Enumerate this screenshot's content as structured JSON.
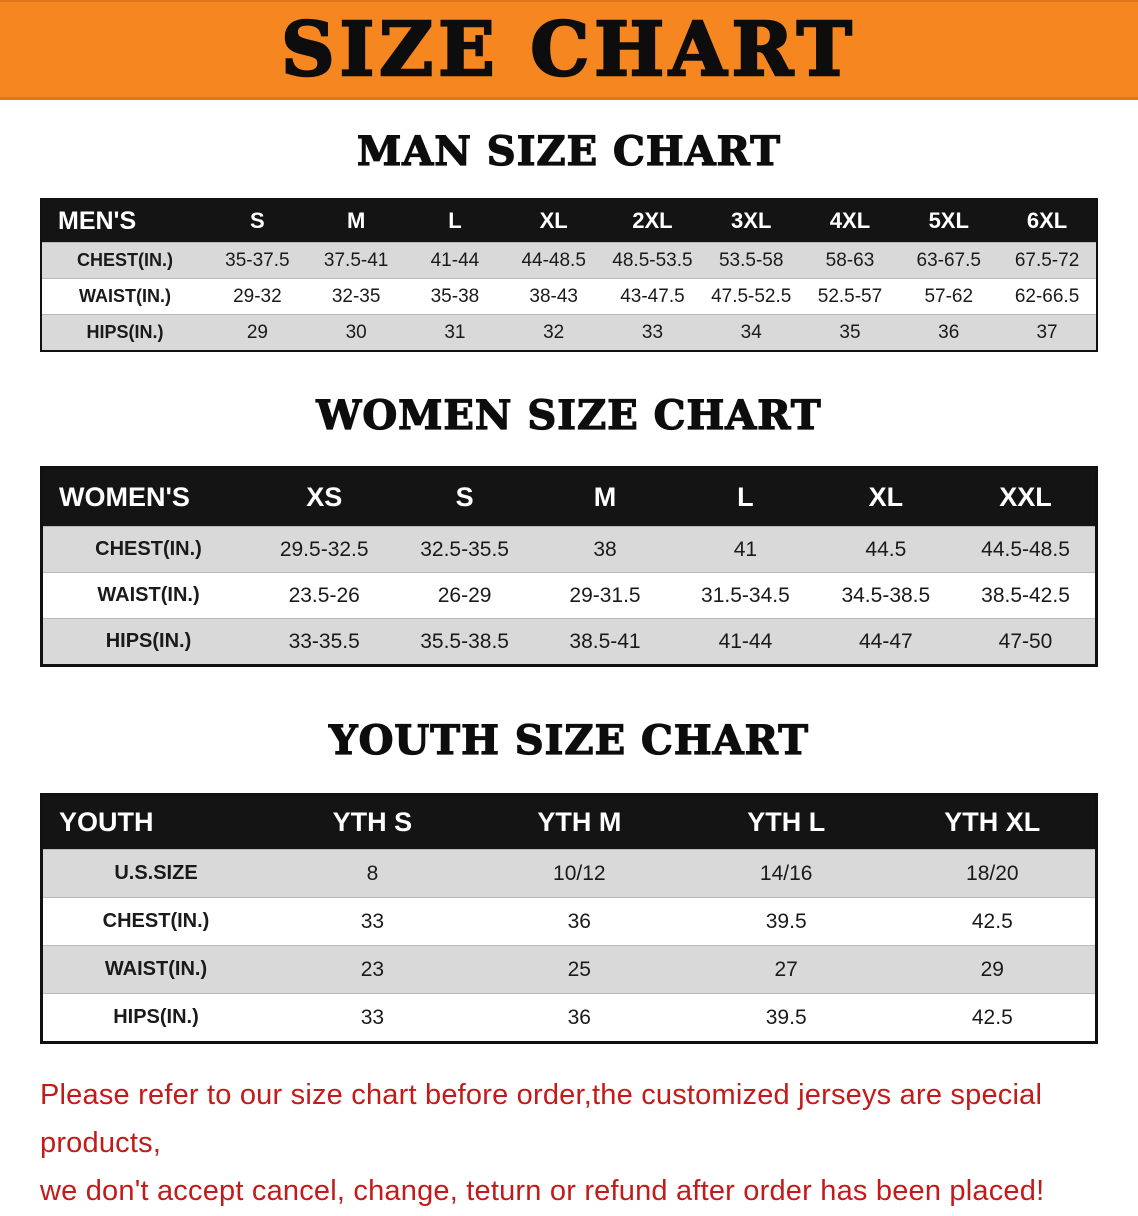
{
  "banner": {
    "title": "SIZE CHART"
  },
  "colors": {
    "banner_bg": "#f6861f",
    "table_header_bg": "#141414",
    "row_alt_bg": "#d9d9d9",
    "disclaimer_text": "#c31a1a"
  },
  "men": {
    "heading": "MAN SIZE CHART",
    "label": "MEN'S",
    "sizes": [
      "S",
      "M",
      "L",
      "XL",
      "2XL",
      "3XL",
      "4XL",
      "5XL",
      "6XL"
    ],
    "rows": [
      {
        "label": "CHEST(IN.)",
        "values": [
          "35-37.5",
          "37.5-41",
          "41-44",
          "44-48.5",
          "48.5-53.5",
          "53.5-58",
          "58-63",
          "63-67.5",
          "67.5-72"
        ]
      },
      {
        "label": "WAIST(IN.)",
        "values": [
          "29-32",
          "32-35",
          "35-38",
          "38-43",
          "43-47.5",
          "47.5-52.5",
          "52.5-57",
          "57-62",
          "62-66.5"
        ]
      },
      {
        "label": "HIPS(IN.)",
        "values": [
          "29",
          "30",
          "31",
          "32",
          "33",
          "34",
          "35",
          "36",
          "37"
        ]
      }
    ]
  },
  "women": {
    "heading": "WOMEN SIZE CHART",
    "label": "WOMEN'S",
    "sizes": [
      "XS",
      "S",
      "M",
      "L",
      "XL",
      "XXL"
    ],
    "rows": [
      {
        "label": "CHEST(IN.)",
        "values": [
          "29.5-32.5",
          "32.5-35.5",
          "38",
          "41",
          "44.5",
          "44.5-48.5"
        ]
      },
      {
        "label": "WAIST(IN.)",
        "values": [
          "23.5-26",
          "26-29",
          "29-31.5",
          "31.5-34.5",
          "34.5-38.5",
          "38.5-42.5"
        ]
      },
      {
        "label": "HIPS(IN.)",
        "values": [
          "33-35.5",
          "35.5-38.5",
          "38.5-41",
          "41-44",
          "44-47",
          "47-50"
        ]
      }
    ]
  },
  "youth": {
    "heading": "YOUTH SIZE CHART",
    "label": "YOUTH",
    "sizes": [
      "YTH S",
      "YTH M",
      "YTH L",
      "YTH XL"
    ],
    "rows": [
      {
        "label": "U.S.SIZE",
        "values": [
          "8",
          "10/12",
          "14/16",
          "18/20"
        ]
      },
      {
        "label": "CHEST(IN.)",
        "values": [
          "33",
          "36",
          "39.5",
          "42.5"
        ]
      },
      {
        "label": "WAIST(IN.)",
        "values": [
          "23",
          "25",
          "27",
          "29"
        ]
      },
      {
        "label": "HIPS(IN.)",
        "values": [
          "33",
          "36",
          "39.5",
          "42.5"
        ]
      }
    ]
  },
  "disclaimer": {
    "line1": "Please refer to our size chart before order,the customized jerseys are special products,",
    "line2": "we don't accept cancel, change, teturn or refund after order has been placed!"
  }
}
